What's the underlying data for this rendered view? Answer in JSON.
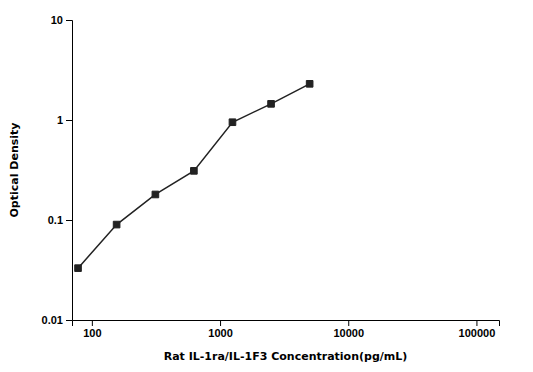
{
  "chart_data": {
    "type": "line",
    "x": [
      78,
      156,
      313,
      625,
      1250,
      2500,
      5000
    ],
    "series": [
      {
        "color": "#222222",
        "marker": "square",
        "line_style": "solid",
        "values": [
          0.033,
          0.09,
          0.18,
          0.31,
          0.95,
          1.45,
          2.3
        ]
      }
    ],
    "xlabel": "Rat IL-1ra/IL-1F3 Concentration(pg/mL)",
    "ylabel": "Optical Density",
    "log": true,
    "xlim": [
      70,
      150000
    ],
    "ylim": [
      0.01,
      10
    ],
    "xticks": [
      100,
      1000,
      10000,
      100000
    ],
    "yticks": [
      0.01,
      0.1,
      1,
      10
    ],
    "grid": false
  }
}
